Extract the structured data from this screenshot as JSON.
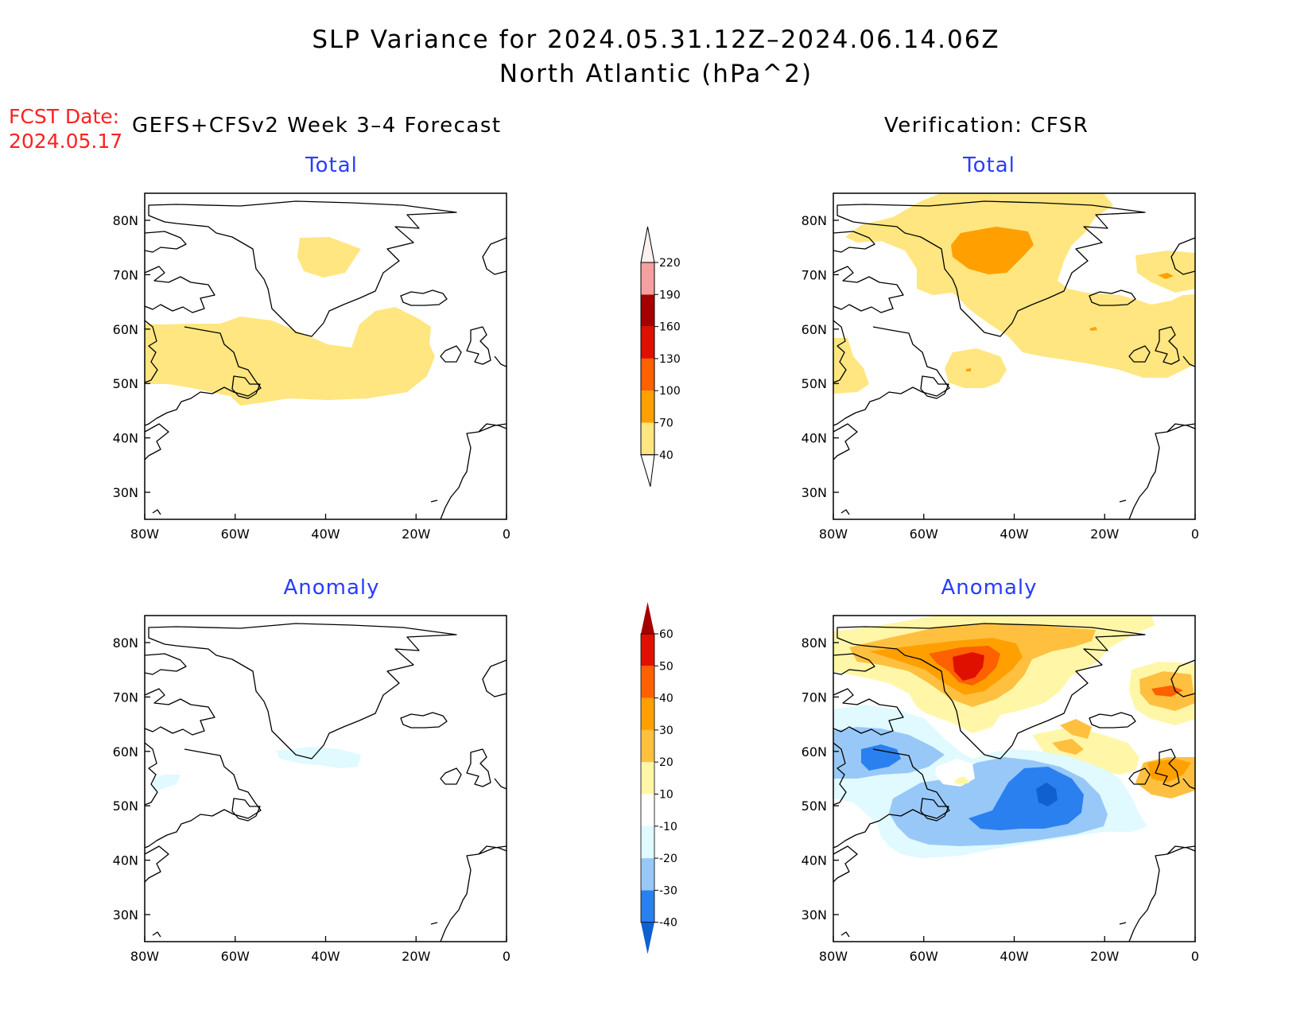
{
  "title": {
    "line1": "SLP Variance for 2024.05.31.12Z–2024.06.14.06Z",
    "line2": "North Atlantic (hPa^2)"
  },
  "forecast_date": {
    "label": "FCST Date:",
    "value": "2024.05.17"
  },
  "sources": {
    "forecast": "GEFS+CFSv2 Week 3–4 Forecast",
    "verification": "Verification: CFSR"
  },
  "panel_titles": {
    "total": "Total",
    "anomaly": "Anomaly"
  },
  "axes": {
    "lon_ticks": [
      "80W",
      "60W",
      "40W",
      "20W",
      "0"
    ],
    "lat_ticks": [
      "80N",
      "70N",
      "60N",
      "50N",
      "40N",
      "30N"
    ]
  },
  "colorbars": {
    "total": {
      "labels": [
        "40",
        "70",
        "100",
        "130",
        "160",
        "190",
        "220"
      ],
      "colors": [
        "#ffe680",
        "#ffa000",
        "#ff6000",
        "#e01000",
        "#a50000",
        "#f4a0a0",
        "#fde0e0"
      ]
    },
    "anomaly": {
      "labels": [
        "-40",
        "-30",
        "-20",
        "-10",
        "10",
        "20",
        "30",
        "40",
        "50",
        "60"
      ],
      "colors": [
        "#1060d0",
        "#2a80ee",
        "#98c8f8",
        "#e0faff",
        "#ffffff",
        "#fff6a8",
        "#ffc040",
        "#ffa000",
        "#ff6000",
        "#e01000",
        "#a50000"
      ]
    }
  }
}
